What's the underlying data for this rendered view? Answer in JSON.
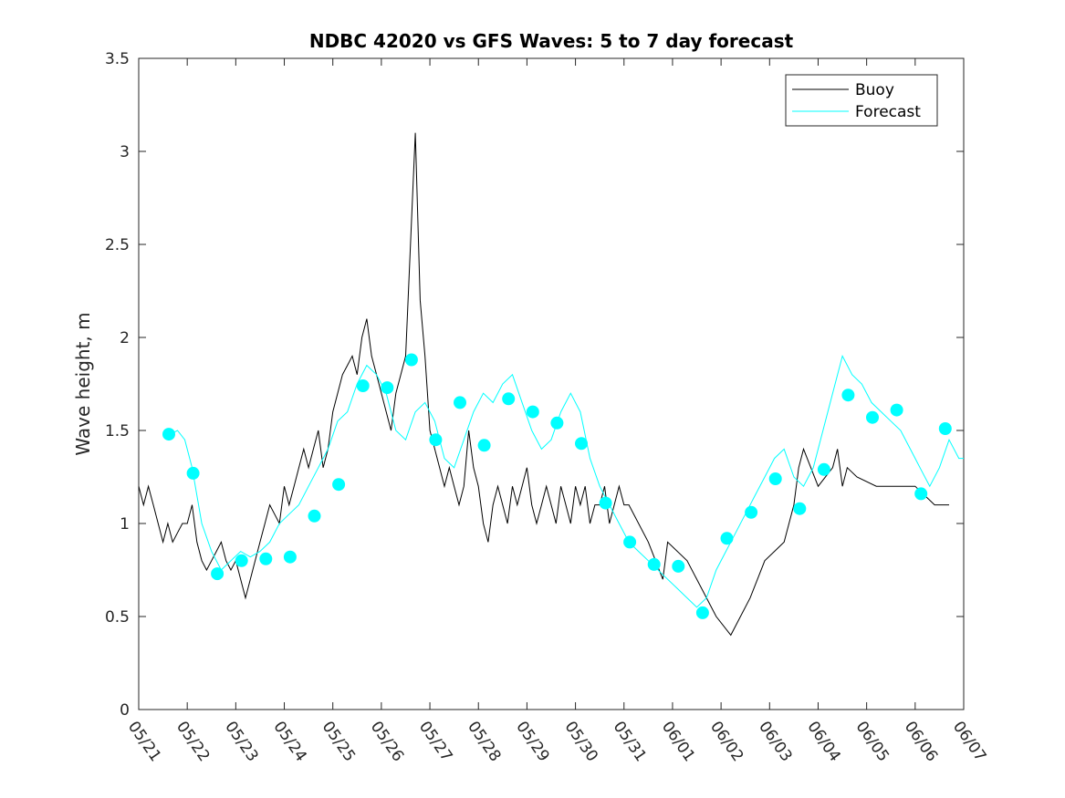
{
  "chart_data": {
    "type": "line",
    "title": "NDBC 42020 vs GFS Waves: 5 to 7 day forecast",
    "xlabel": "",
    "ylabel": "Wave height, m",
    "xlim": [
      "05/21",
      "06/07"
    ],
    "ylim": [
      0,
      3.5
    ],
    "x_tick_labels": [
      "05/21",
      "05/22",
      "05/23",
      "05/24",
      "05/25",
      "05/26",
      "05/27",
      "05/28",
      "05/29",
      "05/30",
      "05/31",
      "06/01",
      "06/02",
      "06/03",
      "06/04",
      "06/05",
      "06/06",
      "06/07"
    ],
    "y_tick_labels": [
      "0",
      "0.5",
      "1",
      "1.5",
      "2",
      "2.5",
      "3",
      "3.5"
    ],
    "grid": false,
    "legend_position": "top-right",
    "colors": {
      "buoy": "#000000",
      "forecast": "#00ffff"
    },
    "series": [
      {
        "name": "Buoy",
        "x": [
          0.0,
          0.1,
          0.2,
          0.3,
          0.4,
          0.5,
          0.6,
          0.7,
          0.8,
          0.9,
          1.0,
          1.1,
          1.2,
          1.3,
          1.4,
          1.5,
          1.6,
          1.7,
          1.8,
          1.9,
          2.0,
          2.1,
          2.2,
          2.3,
          2.4,
          2.5,
          2.6,
          2.7,
          2.8,
          2.9,
          3.0,
          3.1,
          3.2,
          3.3,
          3.4,
          3.5,
          3.6,
          3.7,
          3.8,
          3.9,
          4.0,
          4.1,
          4.2,
          4.3,
          4.4,
          4.5,
          4.6,
          4.7,
          4.8,
          4.9,
          5.0,
          5.1,
          5.2,
          5.3,
          5.4,
          5.5,
          5.6,
          5.7,
          5.8,
          5.9,
          6.0,
          6.1,
          6.2,
          6.3,
          6.4,
          6.5,
          6.6,
          6.7,
          6.8,
          6.9,
          7.0,
          7.1,
          7.2,
          7.3,
          7.4,
          7.5,
          7.6,
          7.7,
          7.8,
          7.9,
          8.0,
          8.1,
          8.2,
          8.3,
          8.4,
          8.5,
          8.6,
          8.7,
          8.8,
          8.9,
          9.0,
          9.1,
          9.2,
          9.3,
          9.4,
          9.5,
          9.6,
          9.7,
          9.8,
          9.9,
          10.0,
          10.1,
          10.5,
          10.8,
          10.85,
          10.9,
          11.3,
          11.7,
          11.9,
          12.2,
          12.6,
          12.9,
          13.1,
          13.3,
          13.5,
          13.6,
          13.7,
          14.0,
          14.3,
          14.4,
          14.5,
          14.6,
          14.8,
          15.2,
          15.6,
          16.0,
          16.4,
          16.7
        ],
        "values": [
          1.2,
          1.1,
          1.2,
          1.1,
          1.0,
          0.9,
          1.0,
          0.9,
          0.95,
          1.0,
          1.0,
          1.1,
          0.9,
          0.8,
          0.75,
          0.8,
          0.85,
          0.9,
          0.8,
          0.75,
          0.8,
          0.7,
          0.6,
          0.7,
          0.8,
          0.9,
          1.0,
          1.1,
          1.05,
          1.0,
          1.2,
          1.1,
          1.2,
          1.3,
          1.4,
          1.3,
          1.4,
          1.5,
          1.3,
          1.4,
          1.6,
          1.7,
          1.8,
          1.85,
          1.9,
          1.8,
          2.0,
          2.1,
          1.9,
          1.8,
          1.7,
          1.6,
          1.5,
          1.7,
          1.8,
          1.9,
          2.5,
          3.1,
          2.2,
          1.9,
          1.5,
          1.4,
          1.3,
          1.2,
          1.3,
          1.2,
          1.1,
          1.2,
          1.5,
          1.3,
          1.2,
          1.0,
          0.9,
          1.1,
          1.2,
          1.1,
          1.0,
          1.2,
          1.1,
          1.2,
          1.3,
          1.1,
          1.0,
          1.1,
          1.2,
          1.1,
          1.0,
          1.2,
          1.1,
          1.0,
          1.2,
          1.1,
          1.2,
          1.0,
          1.1,
          1.1,
          1.2,
          1.0,
          1.1,
          1.2,
          1.1,
          1.1,
          0.9,
          0.7,
          0.8,
          0.9,
          0.8,
          0.6,
          0.5,
          0.4,
          0.6,
          0.8,
          0.85,
          0.9,
          1.1,
          1.3,
          1.4,
          1.2,
          1.3,
          1.4,
          1.2,
          1.3,
          1.25,
          1.2,
          1.2,
          1.2,
          1.1,
          1.1
        ]
      },
      {
        "name": "Forecast",
        "x": [
          0.65,
          0.8,
          0.95,
          1.1,
          1.3,
          1.5,
          1.7,
          1.9,
          2.1,
          2.3,
          2.5,
          2.7,
          2.9,
          3.1,
          3.3,
          3.5,
          3.7,
          3.9,
          4.1,
          4.3,
          4.5,
          4.7,
          4.9,
          5.1,
          5.3,
          5.5,
          5.7,
          5.9,
          6.1,
          6.3,
          6.5,
          6.7,
          6.9,
          7.1,
          7.3,
          7.5,
          7.7,
          7.9,
          8.1,
          8.3,
          8.5,
          8.7,
          8.9,
          9.1,
          9.3,
          9.5,
          9.7,
          9.9,
          10.1,
          10.3,
          10.5,
          10.7,
          10.9,
          11.1,
          11.3,
          11.5,
          11.7,
          11.9,
          12.1,
          12.3,
          12.5,
          12.7,
          12.9,
          13.1,
          13.3,
          13.5,
          13.7,
          13.9,
          14.1,
          14.3,
          14.5,
          14.7,
          14.9,
          15.1,
          15.3,
          15.5,
          15.7,
          15.9,
          16.1,
          16.3,
          16.5,
          16.7,
          16.9,
          17.0
        ],
        "values": [
          1.48,
          1.5,
          1.45,
          1.3,
          1.0,
          0.85,
          0.75,
          0.8,
          0.85,
          0.82,
          0.85,
          0.9,
          1.0,
          1.05,
          1.1,
          1.2,
          1.3,
          1.4,
          1.55,
          1.6,
          1.75,
          1.85,
          1.8,
          1.7,
          1.5,
          1.45,
          1.6,
          1.65,
          1.55,
          1.35,
          1.3,
          1.45,
          1.6,
          1.7,
          1.65,
          1.75,
          1.8,
          1.65,
          1.5,
          1.4,
          1.45,
          1.6,
          1.7,
          1.6,
          1.35,
          1.2,
          1.1,
          1.0,
          0.9,
          0.85,
          0.8,
          0.75,
          0.7,
          0.65,
          0.6,
          0.55,
          0.6,
          0.75,
          0.85,
          0.95,
          1.05,
          1.15,
          1.25,
          1.35,
          1.4,
          1.25,
          1.2,
          1.3,
          1.5,
          1.7,
          1.9,
          1.8,
          1.75,
          1.65,
          1.6,
          1.55,
          1.5,
          1.4,
          1.3,
          1.2,
          1.3,
          1.45,
          1.35,
          1.35
        ]
      }
    ],
    "forecast_markers": {
      "x": [
        0.62,
        1.12,
        1.62,
        2.12,
        2.62,
        3.12,
        3.62,
        4.12,
        4.62,
        5.12,
        5.62,
        6.12,
        6.62,
        7.12,
        7.62,
        8.12,
        8.62,
        9.12,
        9.62,
        10.12,
        10.62,
        11.12,
        11.62,
        12.12,
        12.62,
        13.12,
        13.62,
        14.12,
        14.62,
        15.12,
        15.62,
        16.12,
        16.62
      ],
      "values": [
        1.48,
        1.27,
        0.73,
        0.8,
        0.81,
        0.82,
        1.04,
        1.21,
        1.74,
        1.73,
        1.88,
        1.45,
        1.65,
        1.42,
        1.67,
        1.6,
        1.54,
        1.43,
        1.11,
        0.9,
        0.78,
        0.77,
        0.52,
        0.92,
        1.06,
        1.24,
        1.08,
        1.29,
        1.69,
        1.57,
        1.61,
        1.16,
        1.51
      ]
    }
  }
}
